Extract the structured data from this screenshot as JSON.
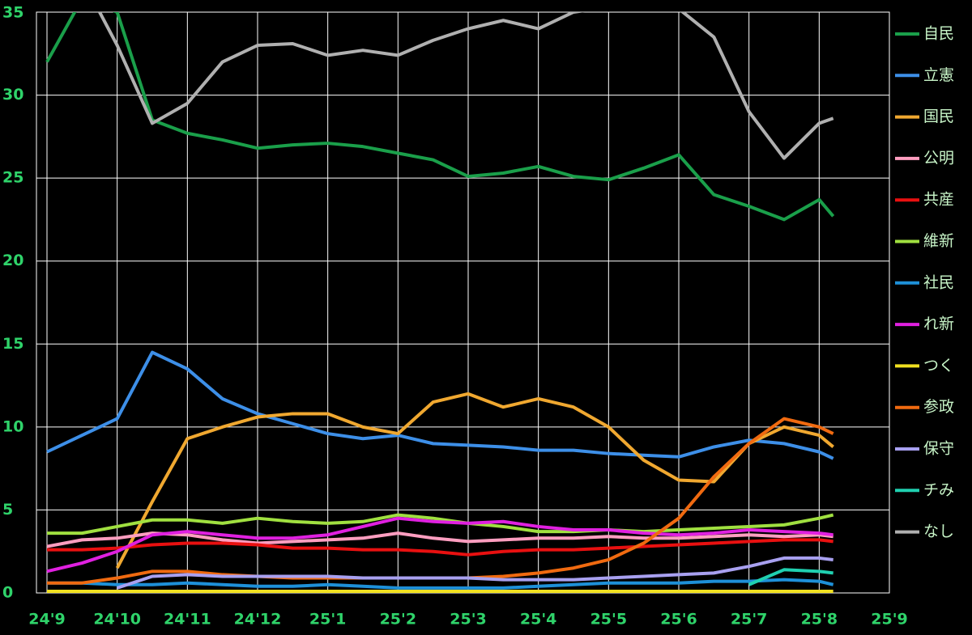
{
  "chart_data": {
    "type": "line",
    "x": [
      0,
      0.5,
      1,
      1.5,
      2,
      2.5,
      3,
      3.5,
      4,
      4.5,
      5,
      5.5,
      6,
      6.5,
      7,
      7.5,
      8,
      8.5,
      9,
      9.5,
      10,
      10.5,
      11,
      11.2
    ],
    "xlim": [
      -0.15,
      12
    ],
    "xticks": [
      {
        "value": 0,
        "label": "24'9"
      },
      {
        "value": 1,
        "label": "24'10"
      },
      {
        "value": 2,
        "label": "24'11"
      },
      {
        "value": 3,
        "label": "24'12"
      },
      {
        "value": 4,
        "label": "25'1"
      },
      {
        "value": 5,
        "label": "25'2"
      },
      {
        "value": 6,
        "label": "25'3"
      },
      {
        "value": 7,
        "label": "25'4"
      },
      {
        "value": 8,
        "label": "25'5"
      },
      {
        "value": 9,
        "label": "25'6"
      },
      {
        "value": 10,
        "label": "25'7"
      },
      {
        "value": 11,
        "label": "25'8"
      },
      {
        "value": 12,
        "label": "25'9"
      }
    ],
    "ylim": [
      0,
      35
    ],
    "yticks": [
      0,
      5,
      10,
      15,
      20,
      25,
      30,
      35
    ],
    "grid": true,
    "legend": "right",
    "series": [
      {
        "name": "自民",
        "color": "#1a9f4a",
        "values": [
          32,
          35.8,
          35,
          28.5,
          27.7,
          27.3,
          26.8,
          27,
          27.1,
          26.9,
          26.5,
          26.1,
          25.1,
          25.3,
          25.7,
          25.1,
          24.9,
          25.6,
          26.4,
          24,
          23.3,
          22.5,
          23.7,
          22.7
        ]
      },
      {
        "name": "立憲",
        "color": "#3d8fe8",
        "values": [
          8.5,
          9.5,
          10.5,
          14.5,
          13.5,
          11.7,
          10.8,
          10.2,
          9.6,
          9.3,
          9.5,
          9,
          8.9,
          8.8,
          8.6,
          8.6,
          8.4,
          8.3,
          8.2,
          8.8,
          9.2,
          9,
          8.5,
          8.1
        ]
      },
      {
        "name": "国民",
        "color": "#f0a830",
        "values": [
          null,
          null,
          1.5,
          5.5,
          9.3,
          10,
          10.6,
          10.8,
          10.8,
          10,
          9.6,
          11.5,
          12,
          11.2,
          11.7,
          11.2,
          10,
          8,
          6.8,
          6.7,
          9,
          10,
          9.5,
          8.8
        ]
      },
      {
        "name": "公明",
        "color": "#ff9ec0",
        "values": [
          2.8,
          3.2,
          3.3,
          3.6,
          3.5,
          3.2,
          3,
          3.1,
          3.2,
          3.3,
          3.6,
          3.3,
          3.1,
          3.2,
          3.3,
          3.3,
          3.4,
          3.3,
          3.3,
          3.4,
          3.5,
          3.4,
          3.5,
          3.4
        ]
      },
      {
        "name": "共産",
        "color": "#e81010",
        "values": [
          2.6,
          2.6,
          2.7,
          2.9,
          3,
          3,
          2.9,
          2.7,
          2.7,
          2.6,
          2.6,
          2.5,
          2.3,
          2.5,
          2.6,
          2.6,
          2.7,
          2.8,
          2.9,
          3,
          3.1,
          3.2,
          3.2,
          3.1
        ]
      },
      {
        "name": "維新",
        "color": "#a0e040",
        "values": [
          3.6,
          3.6,
          4,
          4.4,
          4.4,
          4.2,
          4.5,
          4.3,
          4.2,
          4.3,
          4.7,
          4.5,
          4.2,
          4,
          3.7,
          3.7,
          3.8,
          3.7,
          3.8,
          3.9,
          4,
          4.1,
          4.5,
          4.7
        ]
      },
      {
        "name": "社民",
        "color": "#1e90d8",
        "values": [
          0.6,
          0.6,
          0.5,
          0.5,
          0.6,
          0.5,
          0.4,
          0.4,
          0.5,
          0.4,
          0.3,
          0.3,
          0.3,
          0.3,
          0.4,
          0.5,
          0.6,
          0.6,
          0.6,
          0.7,
          0.7,
          0.8,
          0.7,
          0.5
        ]
      },
      {
        "name": "れ新",
        "color": "#e020e0",
        "values": [
          1.3,
          1.8,
          2.5,
          3.5,
          3.7,
          3.5,
          3.3,
          3.3,
          3.5,
          4,
          4.5,
          4.3,
          4.2,
          4.3,
          4,
          3.8,
          3.8,
          3.6,
          3.5,
          3.6,
          3.8,
          3.7,
          3.6,
          3.5
        ]
      },
      {
        "name": "つく",
        "color": "#f0e020",
        "values": [
          0.1,
          0.1,
          0.1,
          0.1,
          0.1,
          0.1,
          0.1,
          0.1,
          0.1,
          0.1,
          0.1,
          0.1,
          0.1,
          0.1,
          0.1,
          0.1,
          0.1,
          0.1,
          0.1,
          0.1,
          0.1,
          0.1,
          0.1,
          0.1
        ]
      },
      {
        "name": "参政",
        "color": "#f06a10",
        "values": [
          0.6,
          0.6,
          0.9,
          1.3,
          1.3,
          1.1,
          1,
          0.9,
          0.9,
          0.9,
          0.9,
          0.9,
          0.9,
          1,
          1.2,
          1.5,
          2,
          3,
          4.5,
          7,
          9,
          10.5,
          10,
          9.6
        ]
      },
      {
        "name": "保守",
        "color": "#a8a0f0",
        "values": [
          null,
          null,
          0.3,
          1,
          1.1,
          1,
          1,
          1,
          1,
          0.9,
          0.9,
          0.9,
          0.9,
          0.8,
          0.8,
          0.8,
          0.9,
          1,
          1.1,
          1.2,
          1.6,
          2.1,
          2.1,
          2
        ]
      },
      {
        "name": "チみ",
        "color": "#20d0b0",
        "values": [
          null,
          null,
          null,
          null,
          null,
          null,
          null,
          null,
          null,
          null,
          null,
          null,
          null,
          null,
          null,
          null,
          null,
          null,
          null,
          null,
          0.5,
          1.4,
          1.3,
          1.2
        ]
      },
      {
        "name": "なし",
        "color": "#b0b0b0",
        "values": [
          36,
          37,
          33,
          28.3,
          29.5,
          32,
          33,
          33.1,
          32.4,
          32.7,
          32.4,
          33.3,
          34,
          34.5,
          34,
          35,
          35.3,
          35.5,
          35.2,
          33.5,
          29,
          26.2,
          28.3,
          28.6
        ]
      }
    ]
  }
}
